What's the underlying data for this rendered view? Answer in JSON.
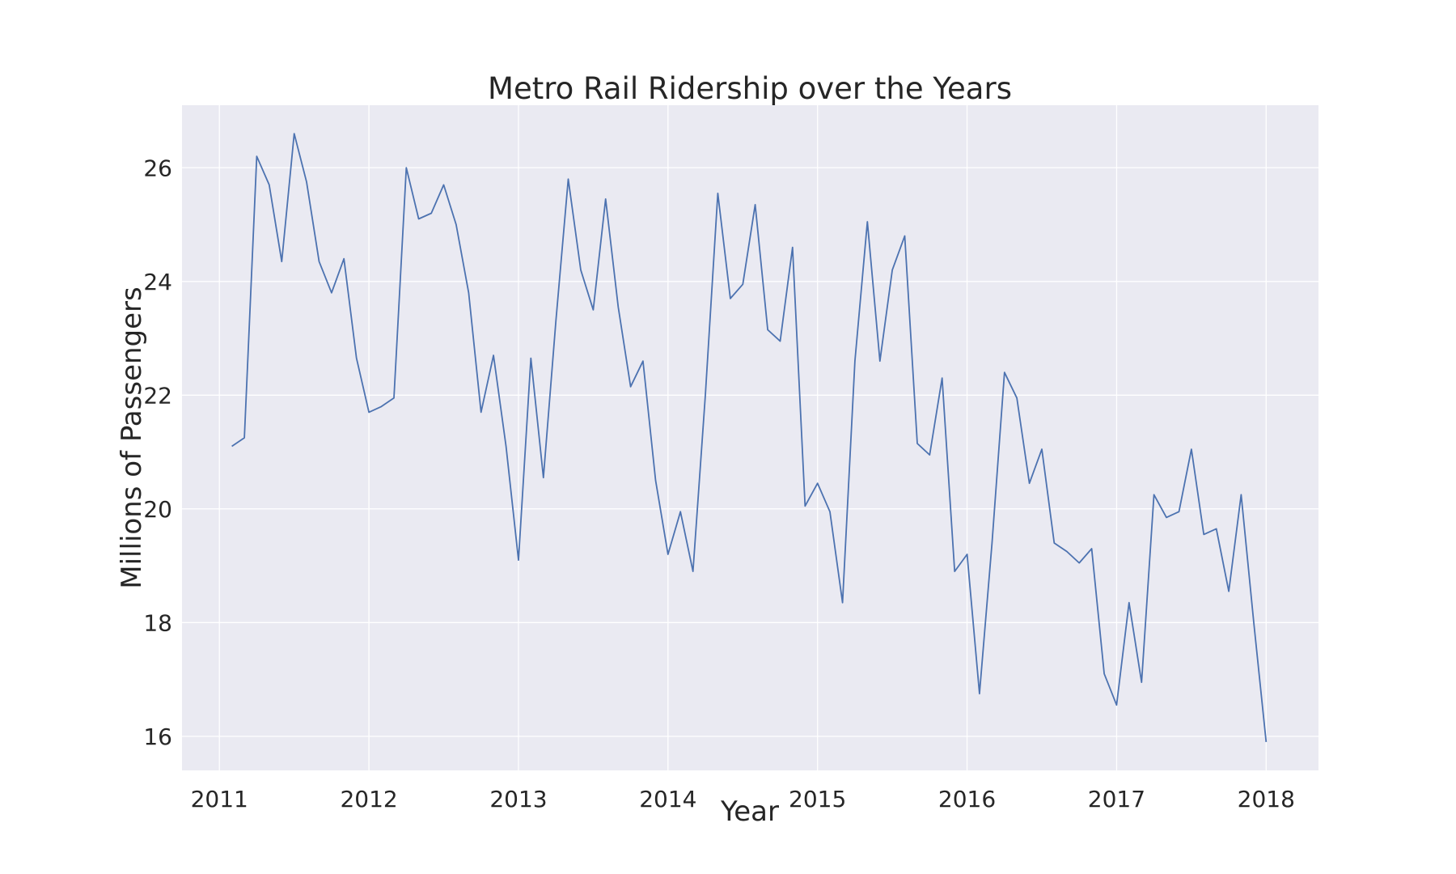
{
  "chart_data": {
    "type": "line",
    "title": "Metro Rail Ridership over the Years",
    "xlabel": "Year",
    "ylabel": "Millions of Passengers",
    "xlim": [
      2010.75,
      2018.35
    ],
    "ylim": [
      15.4,
      27.1
    ],
    "xticks": [
      2011,
      2012,
      2013,
      2014,
      2015,
      2016,
      2017,
      2018
    ],
    "yticks": [
      16,
      18,
      20,
      22,
      24,
      26
    ],
    "grid": true,
    "line_color": "#4c72b0",
    "series": [
      {
        "x": [
          2011.083,
          2011.167,
          2011.25,
          2011.333,
          2011.417,
          2011.5,
          2011.583,
          2011.667,
          2011.75,
          2011.833,
          2011.917,
          2012.0,
          2012.083,
          2012.167,
          2012.25,
          2012.333,
          2012.417,
          2012.5,
          2012.583,
          2012.667,
          2012.75,
          2012.833,
          2012.917,
          2013.0,
          2013.083,
          2013.167,
          2013.25,
          2013.333,
          2013.417,
          2013.5,
          2013.583,
          2013.667,
          2013.75,
          2013.833,
          2013.917,
          2014.0,
          2014.083,
          2014.167,
          2014.25,
          2014.333,
          2014.417,
          2014.5,
          2014.583,
          2014.667,
          2014.75,
          2014.833,
          2014.917,
          2015.0,
          2015.083,
          2015.167,
          2015.25,
          2015.333,
          2015.417,
          2015.5,
          2015.583,
          2015.667,
          2015.75,
          2015.833,
          2015.917,
          2016.0,
          2016.083,
          2016.167,
          2016.25,
          2016.333,
          2016.417,
          2016.5,
          2016.583,
          2016.667,
          2016.75,
          2016.833,
          2016.917,
          2017.0,
          2017.083,
          2017.167,
          2017.25,
          2017.333,
          2017.417,
          2017.5,
          2017.583,
          2017.667,
          2017.75,
          2017.833,
          2017.917,
          2018.0
        ],
        "values": [
          21.1,
          21.25,
          26.2,
          25.7,
          24.35,
          26.6,
          25.75,
          24.35,
          23.8,
          24.4,
          22.65,
          21.7,
          21.8,
          21.95,
          26.0,
          25.1,
          25.2,
          25.7,
          25.0,
          23.8,
          21.7,
          22.7,
          21.1,
          19.1,
          22.65,
          20.55,
          23.3,
          25.8,
          24.2,
          23.5,
          25.45,
          23.55,
          22.15,
          22.6,
          20.5,
          19.2,
          19.95,
          18.9,
          22.0,
          25.55,
          23.7,
          23.95,
          25.35,
          23.15,
          22.95,
          24.6,
          20.05,
          20.45,
          19.95,
          18.35,
          22.6,
          25.05,
          22.6,
          24.2,
          24.8,
          21.15,
          20.95,
          22.3,
          18.9,
          19.2,
          16.75,
          19.4,
          22.4,
          21.95,
          20.45,
          21.05,
          19.4,
          19.25,
          19.05,
          19.3,
          17.1,
          16.55,
          18.35,
          16.95,
          20.25,
          19.85,
          19.95,
          21.05,
          19.55,
          19.65,
          18.55,
          20.25,
          18.0,
          15.9
        ]
      }
    ]
  }
}
